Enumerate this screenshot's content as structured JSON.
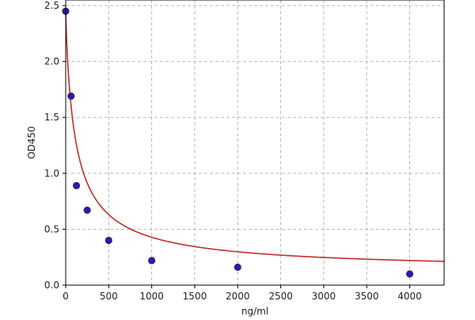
{
  "chart_data": {
    "type": "scatter",
    "title": "",
    "xlabel": "ng/ml",
    "ylabel": "OD450",
    "xlim": [
      0,
      4400
    ],
    "ylim": [
      0,
      2.55
    ],
    "x_ticks": [
      0,
      500,
      1000,
      1500,
      2000,
      2500,
      3000,
      3500,
      4000
    ],
    "x_tick_labels": [
      "0",
      "500",
      "1000",
      "1500",
      "2000",
      "2500",
      "3000",
      "3500",
      "4000"
    ],
    "y_ticks": [
      0,
      0.5,
      1.0,
      1.5,
      2.0,
      2.5
    ],
    "y_tick_labels": [
      "0.0",
      "0.5",
      "1.0",
      "1.5",
      "2.0",
      "2.5"
    ],
    "grid": true,
    "legend": false,
    "series": [
      {
        "kind": "points",
        "x": [
          0,
          62.5,
          125,
          250,
          500,
          1000,
          2000,
          4000
        ],
        "y": [
          2.45,
          1.69,
          0.89,
          0.67,
          0.4,
          0.22,
          0.16,
          0.1
        ],
        "color": "#1f1fbf"
      },
      {
        "kind": "fitted-curve",
        "model": "4PL",
        "params": {
          "A": 2.45,
          "B": 0.88,
          "C": 118,
          "D": 0.12
        },
        "color": "#c0302b"
      }
    ],
    "colors": {
      "grid": "#b0b0b0",
      "axis": "#000000",
      "point_edge": "#7a1020"
    }
  }
}
